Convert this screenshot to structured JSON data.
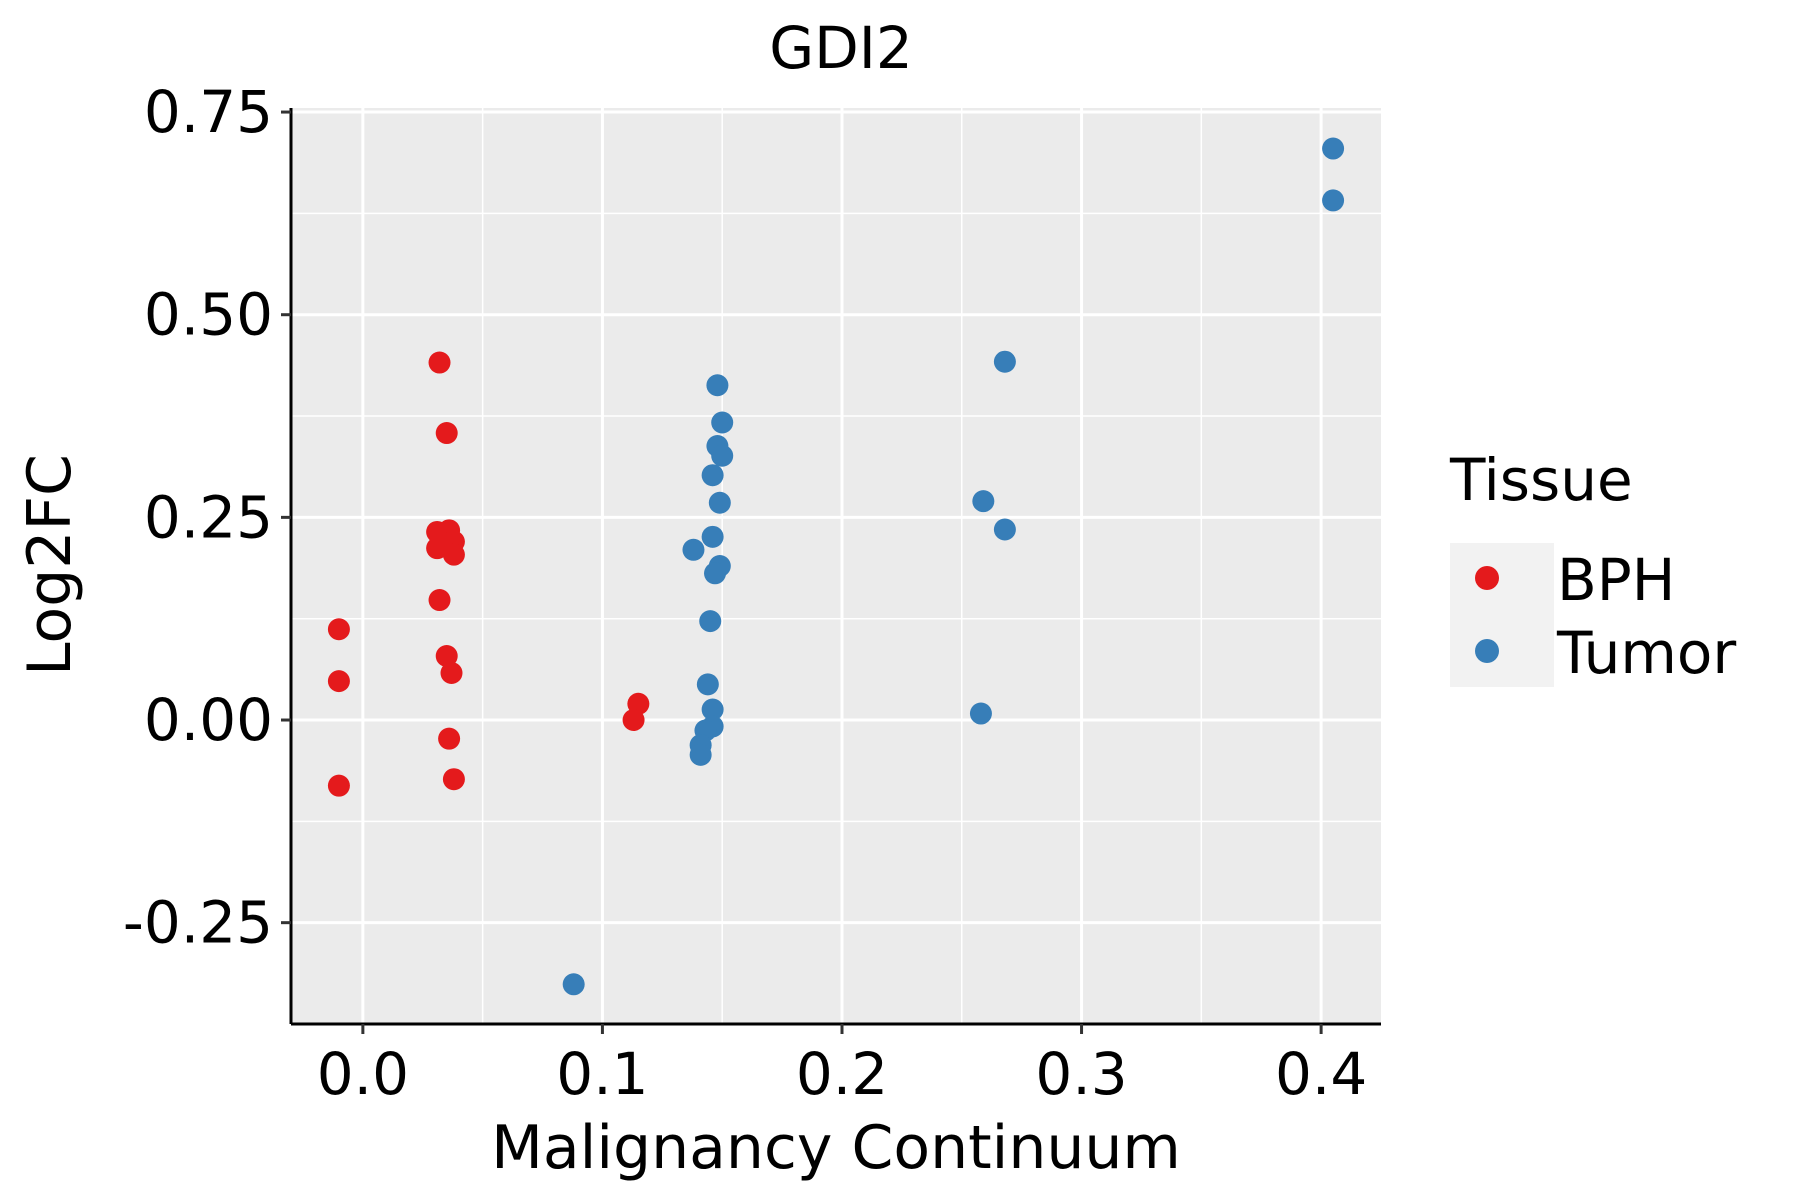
{
  "chart_data": {
    "type": "scatter",
    "title": "GDI2",
    "xlabel": "Malignancy Continuum",
    "ylabel": "Log2FC",
    "xlim": [
      -0.03,
      0.425
    ],
    "ylim": [
      -0.375,
      0.755
    ],
    "x_ticks": [
      0.0,
      0.1,
      0.2,
      0.3,
      0.4
    ],
    "x_tick_labels": [
      "0.0",
      "0.1",
      "0.2",
      "0.3",
      "0.4"
    ],
    "y_ticks": [
      -0.25,
      0.0,
      0.25,
      0.5,
      0.75
    ],
    "y_tick_labels": [
      "-0.25",
      "0.00",
      "0.25",
      "0.50",
      "0.75"
    ],
    "grid": true,
    "legend": {
      "title": "Tissue",
      "placement": "right",
      "entries": [
        {
          "label": "BPH",
          "color": "#e41a1c"
        },
        {
          "label": "Tumor",
          "color": "#377eb8"
        }
      ]
    },
    "series": [
      {
        "name": "BPH",
        "color": "#e41a1c",
        "points": [
          {
            "x": -0.01,
            "y": 0.112
          },
          {
            "x": -0.01,
            "y": 0.048
          },
          {
            "x": -0.01,
            "y": -0.081
          },
          {
            "x": 0.032,
            "y": 0.441
          },
          {
            "x": 0.035,
            "y": 0.354
          },
          {
            "x": 0.031,
            "y": 0.232
          },
          {
            "x": 0.036,
            "y": 0.234
          },
          {
            "x": 0.038,
            "y": 0.22
          },
          {
            "x": 0.031,
            "y": 0.212
          },
          {
            "x": 0.033,
            "y": 0.219
          },
          {
            "x": 0.038,
            "y": 0.204
          },
          {
            "x": 0.032,
            "y": 0.148
          },
          {
            "x": 0.035,
            "y": 0.079
          },
          {
            "x": 0.037,
            "y": 0.058
          },
          {
            "x": 0.036,
            "y": -0.023
          },
          {
            "x": 0.038,
            "y": -0.073
          },
          {
            "x": 0.115,
            "y": 0.02
          },
          {
            "x": 0.113,
            "y": 0.0
          }
        ]
      },
      {
        "name": "Tumor",
        "color": "#377eb8",
        "points": [
          {
            "x": 0.088,
            "y": -0.326
          },
          {
            "x": 0.148,
            "y": 0.413
          },
          {
            "x": 0.15,
            "y": 0.367
          },
          {
            "x": 0.148,
            "y": 0.338
          },
          {
            "x": 0.15,
            "y": 0.326
          },
          {
            "x": 0.146,
            "y": 0.302
          },
          {
            "x": 0.149,
            "y": 0.268
          },
          {
            "x": 0.146,
            "y": 0.226
          },
          {
            "x": 0.138,
            "y": 0.21
          },
          {
            "x": 0.149,
            "y": 0.19
          },
          {
            "x": 0.147,
            "y": 0.181
          },
          {
            "x": 0.145,
            "y": 0.122
          },
          {
            "x": 0.144,
            "y": 0.044
          },
          {
            "x": 0.146,
            "y": 0.013
          },
          {
            "x": 0.146,
            "y": -0.008
          },
          {
            "x": 0.143,
            "y": -0.013
          },
          {
            "x": 0.141,
            "y": -0.031
          },
          {
            "x": 0.141,
            "y": -0.043
          },
          {
            "x": 0.258,
            "y": 0.008
          },
          {
            "x": 0.259,
            "y": 0.27
          },
          {
            "x": 0.268,
            "y": 0.235
          },
          {
            "x": 0.268,
            "y": 0.442
          },
          {
            "x": 0.405,
            "y": 0.705
          },
          {
            "x": 0.405,
            "y": 0.641
          }
        ]
      }
    ]
  }
}
